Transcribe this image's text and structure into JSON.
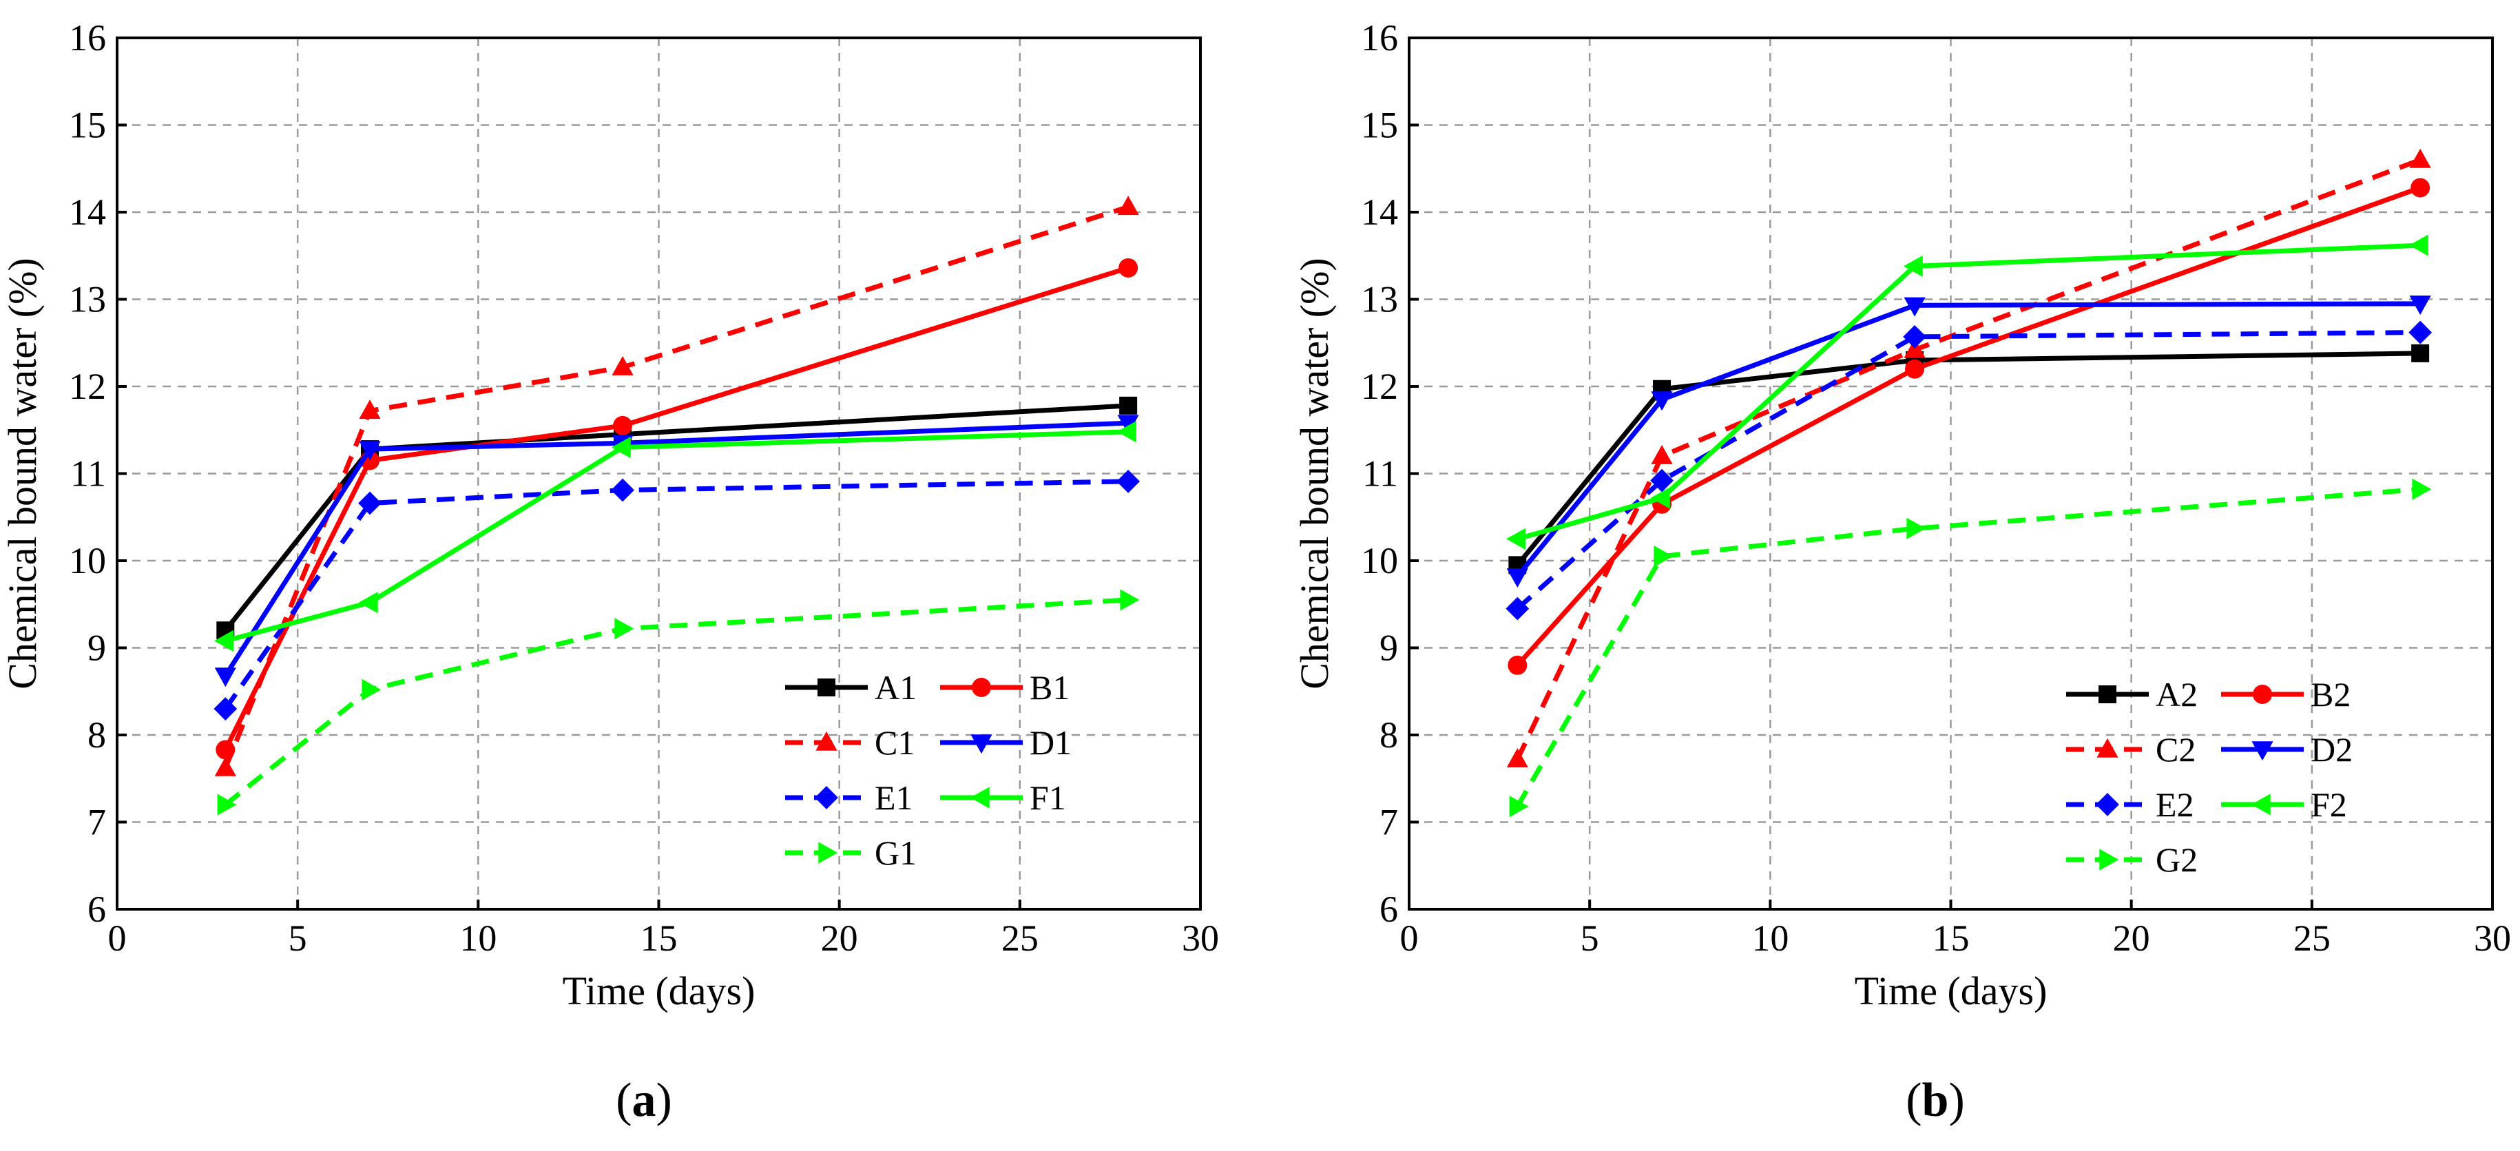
{
  "figure": {
    "panel_tags": [
      "(a)",
      "(b)"
    ]
  },
  "chart_data": [
    {
      "type": "line",
      "panel": "a",
      "title": "",
      "xlabel": "Time (days)",
      "ylabel": "Chemical bound water (%)",
      "xlim": [
        0,
        30
      ],
      "ylim": [
        6,
        16
      ],
      "xticks": [
        0,
        5,
        10,
        15,
        20,
        25,
        30
      ],
      "yticks": [
        6,
        7,
        8,
        9,
        10,
        11,
        12,
        13,
        14,
        15,
        16
      ],
      "grid": true,
      "legend_position": "bottom-right",
      "x": [
        3,
        7,
        14,
        28
      ],
      "series": [
        {
          "name": "A1",
          "values": [
            9.2,
            11.28,
            11.45,
            11.78
          ],
          "color": "#000000",
          "dash": "solid",
          "marker": "square"
        },
        {
          "name": "B1",
          "values": [
            7.83,
            11.15,
            11.55,
            13.36
          ],
          "color": "#ff0000",
          "dash": "solid",
          "marker": "circle"
        },
        {
          "name": "C1",
          "values": [
            7.62,
            11.72,
            12.22,
            14.06
          ],
          "color": "#ff0000",
          "dash": "dashed",
          "marker": "triangle-up"
        },
        {
          "name": "D1",
          "values": [
            8.68,
            11.28,
            11.35,
            11.58
          ],
          "color": "#0000ff",
          "dash": "solid",
          "marker": "triangle-down"
        },
        {
          "name": "E1",
          "values": [
            8.3,
            10.66,
            10.81,
            10.91
          ],
          "color": "#0000ff",
          "dash": "dashed",
          "marker": "diamond"
        },
        {
          "name": "F1",
          "values": [
            9.08,
            9.52,
            11.3,
            11.48
          ],
          "color": "#00ff00",
          "dash": "solid",
          "marker": "triangle-left"
        },
        {
          "name": "G1",
          "values": [
            7.2,
            8.52,
            9.22,
            9.55
          ],
          "color": "#00ff00",
          "dash": "dashed",
          "marker": "triangle-right"
        }
      ]
    },
    {
      "type": "line",
      "panel": "b",
      "title": "",
      "xlabel": "Time (days)",
      "ylabel": "Chemical bound water (%)",
      "xlim": [
        0,
        30
      ],
      "ylim": [
        6,
        16
      ],
      "xticks": [
        0,
        5,
        10,
        15,
        20,
        25,
        30
      ],
      "yticks": [
        6,
        7,
        8,
        9,
        10,
        11,
        12,
        13,
        14,
        15,
        16
      ],
      "grid": true,
      "legend_position": "bottom-right",
      "x": [
        3,
        7,
        14,
        28
      ],
      "series": [
        {
          "name": "A2",
          "values": [
            9.95,
            11.97,
            12.3,
            12.38
          ],
          "color": "#000000",
          "dash": "solid",
          "marker": "square"
        },
        {
          "name": "B2",
          "values": [
            8.8,
            10.65,
            12.2,
            14.28
          ],
          "color": "#ff0000",
          "dash": "solid",
          "marker": "circle"
        },
        {
          "name": "C2",
          "values": [
            7.72,
            11.2,
            12.42,
            14.6
          ],
          "color": "#ff0000",
          "dash": "dashed",
          "marker": "triangle-up"
        },
        {
          "name": "D2",
          "values": [
            9.82,
            11.85,
            12.93,
            12.95
          ],
          "color": "#0000ff",
          "dash": "solid",
          "marker": "triangle-down"
        },
        {
          "name": "E2",
          "values": [
            9.45,
            10.92,
            12.57,
            12.62
          ],
          "color": "#0000ff",
          "dash": "dashed",
          "marker": "diamond"
        },
        {
          "name": "F2",
          "values": [
            10.25,
            10.72,
            13.38,
            13.62
          ],
          "color": "#00ff00",
          "dash": "solid",
          "marker": "triangle-left"
        },
        {
          "name": "G2",
          "values": [
            7.18,
            10.05,
            10.37,
            10.82
          ],
          "color": "#00ff00",
          "dash": "dashed",
          "marker": "triangle-right"
        }
      ]
    }
  ]
}
